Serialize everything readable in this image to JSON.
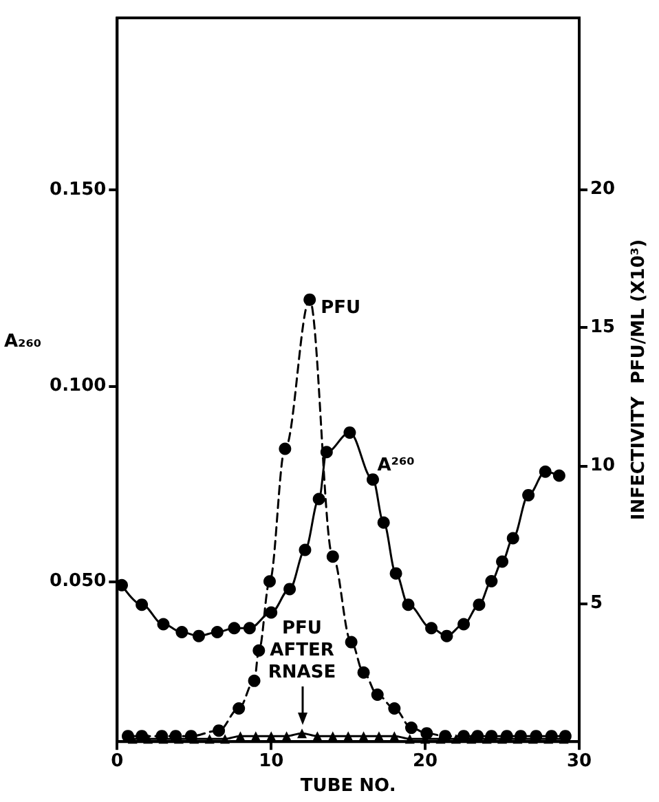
{
  "chart_data": {
    "type": "line",
    "xlabel": "TUBE NO.",
    "ylabel": "A₂₆₀",
    "y2label": "INFECTIVITY  PFU/ML (X10³)",
    "xlim": [
      0,
      30
    ],
    "xticks": [
      0,
      10,
      20,
      30
    ],
    "ylim": [
      0.009,
      0.194
    ],
    "yticks": [
      {
        "value": 0.05,
        "label": "0.050"
      },
      {
        "value": 0.1,
        "label": "0.100"
      },
      {
        "value": 0.15,
        "label": "0.150"
      }
    ],
    "y2lim": [
      0,
      26.2
    ],
    "y2ticks": [
      5,
      10,
      15,
      20
    ],
    "grid": false,
    "legend": false,
    "series": [
      {
        "name": "A²⁶⁰",
        "color": "#000000",
        "marker": "circle",
        "line_style": "solid",
        "x": [
          0.3,
          1.6,
          3.0,
          4.2,
          5.3,
          6.5,
          7.6,
          8.6,
          10.0,
          11.2,
          12.2,
          13.1,
          13.6,
          15.1,
          16.6,
          17.3,
          18.1,
          18.9,
          20.4,
          21.4,
          22.5,
          23.5,
          24.3,
          25.0,
          25.7,
          26.7,
          27.8,
          28.7
        ],
        "values": [
          0.049,
          0.044,
          0.039,
          0.037,
          0.036,
          0.037,
          0.038,
          0.038,
          0.042,
          0.048,
          0.058,
          0.071,
          0.083,
          0.088,
          0.076,
          0.065,
          0.052,
          0.044,
          0.038,
          0.036,
          0.039,
          0.044,
          0.05,
          0.055,
          0.061,
          0.072,
          0.078,
          0.077
        ]
      },
      {
        "name": "PFU",
        "color": "#000000",
        "marker": "circle",
        "line_style": "dashed",
        "axis": "y2",
        "x": [
          0.7,
          1.6,
          2.9,
          3.8,
          4.8,
          6.6,
          7.9,
          8.9,
          9.2,
          9.9,
          10.9,
          12.5,
          14.0,
          15.2,
          16.0,
          16.9,
          18.0,
          19.1,
          20.1,
          21.3,
          22.5,
          23.4,
          24.3,
          25.3,
          26.2,
          27.2,
          28.2,
          29.1
        ],
        "values": [
          0.2,
          0.2,
          0.2,
          0.2,
          0.2,
          0.4,
          1.2,
          2.2,
          3.3,
          5.8,
          10.6,
          16.0,
          6.7,
          3.6,
          2.5,
          1.7,
          1.2,
          0.5,
          0.3,
          0.2,
          0.2,
          0.2,
          0.2,
          0.2,
          0.2,
          0.2,
          0.2,
          0.2
        ]
      },
      {
        "name": "PFU AFTER RNASE",
        "color": "#000000",
        "marker": "triangle",
        "line_style": "solid",
        "axis": "y2",
        "x": [
          1,
          2,
          3,
          4,
          5,
          6,
          7,
          8,
          9,
          10,
          11,
          12,
          13,
          14,
          15,
          16,
          17,
          18,
          19,
          20,
          21,
          22,
          23,
          24,
          25,
          26,
          27,
          28,
          29
        ],
        "values": [
          0.1,
          0.1,
          0.1,
          0.1,
          0.1,
          0.1,
          0.1,
          0.2,
          0.2,
          0.2,
          0.2,
          0.3,
          0.2,
          0.2,
          0.2,
          0.2,
          0.2,
          0.2,
          0.1,
          0.1,
          0.1,
          0.1,
          0.1,
          0.1,
          0.1,
          0.1,
          0.1,
          0.1,
          0.1
        ]
      }
    ]
  }
}
